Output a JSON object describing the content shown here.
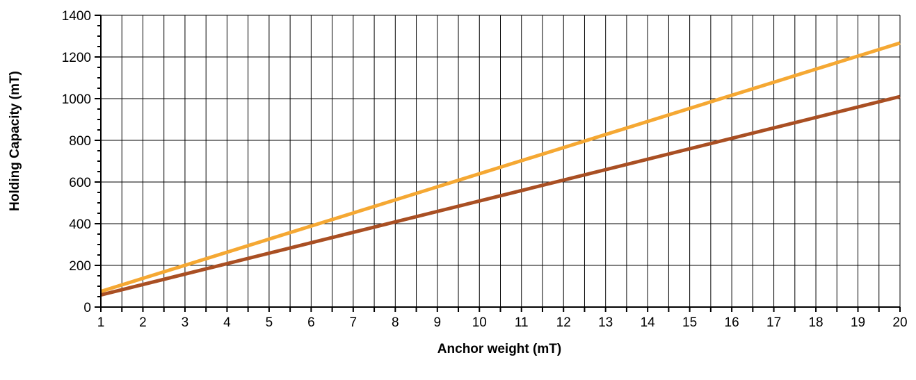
{
  "chart_data": {
    "type": "line",
    "xlabel": "Anchor weight (mT)",
    "ylabel": "Holding Capacity (mT)",
    "xlim": [
      1,
      20
    ],
    "ylim": [
      0,
      1400
    ],
    "x_ticks": [
      "1",
      "2",
      "3",
      "4",
      "5",
      "6",
      "7",
      "8",
      "9",
      "10",
      "11",
      "12",
      "13",
      "14",
      "15",
      "16",
      "17",
      "18",
      "19",
      "20"
    ],
    "y_ticks": [
      "0",
      "200",
      "400",
      "600",
      "800",
      "1000",
      "1200",
      "1400"
    ],
    "grid": true,
    "vertical_grid_step": 0.5,
    "legend": "none",
    "series": [
      {
        "color": "#f5a833",
        "x": [
          1,
          20
        ],
        "values": [
          75,
          1267
        ]
      },
      {
        "color": "#a94f23",
        "x": [
          1,
          20
        ],
        "values": [
          58,
          1010
        ]
      }
    ]
  }
}
